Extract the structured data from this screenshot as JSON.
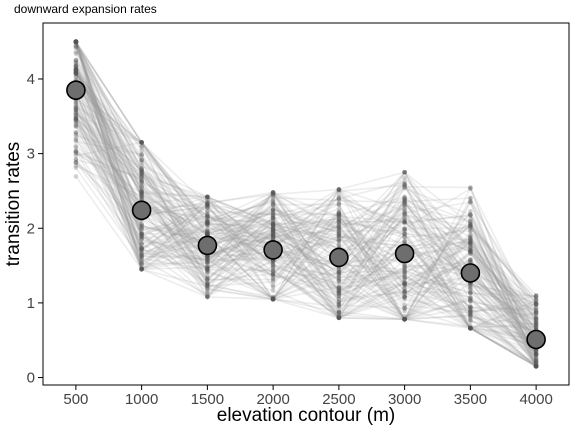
{
  "chart_data": {
    "type": "scatter",
    "title": "downward expansion rates",
    "xlabel": "elevation contour (m)",
    "ylabel": "transition rates",
    "x": [
      500,
      1000,
      1500,
      2000,
      2500,
      3000,
      3500,
      4000
    ],
    "x_tick_labels": [
      "500",
      "1000",
      "1500",
      "2000",
      "2500",
      "3000",
      "3500",
      "4000"
    ],
    "y_ticks": [
      0,
      1,
      2,
      3,
      4
    ],
    "y_tick_labels": [
      "0",
      "1",
      "2",
      "3",
      "4"
    ],
    "xlim": [
      250,
      4250
    ],
    "ylim": [
      -0.1,
      4.75
    ],
    "series": [
      {
        "values": [
          3.85,
          2.24,
          1.77,
          1.71,
          1.61,
          1.66,
          1.4,
          0.51
        ]
      }
    ],
    "sample_ranges": {
      "min": [
        2.65,
        1.45,
        1.08,
        1.05,
        0.8,
        0.78,
        0.66,
        0.15
      ],
      "max": [
        4.5,
        3.15,
        2.42,
        2.48,
        2.52,
        2.75,
        2.57,
        1.1
      ]
    },
    "grid": false,
    "colors": {
      "mean_point_fill": "#6e6e6e",
      "mean_point_stroke": "#000000",
      "sample_lines": "#9a9a9a",
      "sample_points": "#555555"
    }
  }
}
